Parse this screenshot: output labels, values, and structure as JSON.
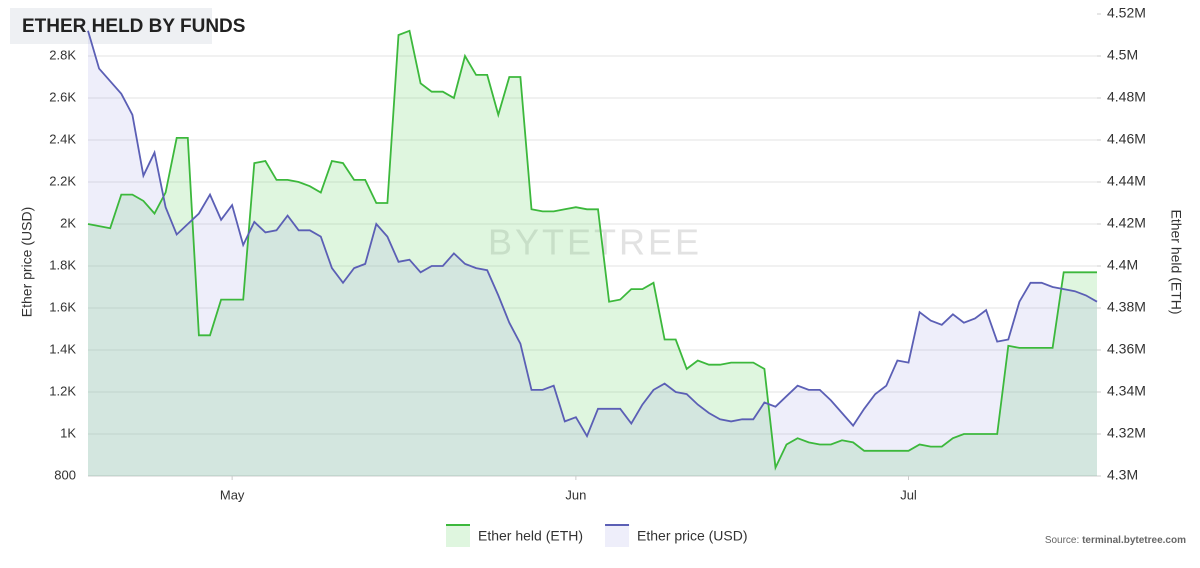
{
  "chart_data": {
    "type": "line",
    "title": "ETHER HELD BY FUNDS",
    "watermark": "BYTETREE",
    "source_prefix": "Source: ",
    "source": "terminal.bytetree.com",
    "y_label": "Ether price (USD)",
    "y2_label": "Ether held (ETH)",
    "grid": true,
    "x": [
      0,
      1,
      2,
      3,
      4,
      5,
      6,
      7,
      8,
      9,
      10,
      11,
      12,
      13,
      14,
      15,
      16,
      17,
      18,
      19,
      20,
      21,
      22,
      23,
      24,
      25,
      26,
      27,
      28,
      29,
      30,
      31,
      32,
      33,
      34,
      35,
      36,
      37,
      38,
      39,
      40,
      41,
      42,
      43,
      44,
      45,
      46,
      47,
      48,
      49,
      50,
      51,
      52,
      53,
      54,
      55,
      56,
      57,
      58,
      59,
      60,
      61,
      62,
      63,
      64,
      65,
      66,
      67,
      68,
      69,
      70,
      71,
      72,
      73,
      74,
      75,
      76,
      77,
      78,
      79,
      80,
      81,
      82,
      83,
      84,
      85,
      86,
      87,
      88,
      89,
      90,
      91
    ],
    "xlim": [
      0,
      91
    ],
    "xticks": [
      {
        "value": 13,
        "label": "May"
      },
      {
        "value": 44,
        "label": "Jun"
      },
      {
        "value": 74,
        "label": "Jul"
      }
    ],
    "ylim": [
      800,
      3000
    ],
    "yticks": [
      800,
      {
        "value": 1000,
        "label": "1K"
      },
      {
        "value": 1200,
        "label": "1.2K"
      },
      {
        "value": 1400,
        "label": "1.4K"
      },
      {
        "value": 1600,
        "label": "1.6K"
      },
      {
        "value": 1800,
        "label": "1.8K"
      },
      {
        "value": 2000,
        "label": "2K"
      },
      {
        "value": 2200,
        "label": "2.2K"
      },
      {
        "value": 2400,
        "label": "2.4K"
      },
      {
        "value": 2600,
        "label": "2.6K"
      },
      {
        "value": 2800,
        "label": "2.8K"
      }
    ],
    "y2lim": [
      4300000,
      4520000
    ],
    "y2ticks": [
      {
        "value": 4300000,
        "label": "4.3M"
      },
      {
        "value": 4320000,
        "label": "4.32M"
      },
      {
        "value": 4340000,
        "label": "4.34M"
      },
      {
        "value": 4360000,
        "label": "4.36M"
      },
      {
        "value": 4380000,
        "label": "4.38M"
      },
      {
        "value": 4400000,
        "label": "4.4M"
      },
      {
        "value": 4420000,
        "label": "4.42M"
      },
      {
        "value": 4440000,
        "label": "4.44M"
      },
      {
        "value": 4460000,
        "label": "4.46M"
      },
      {
        "value": 4480000,
        "label": "4.48M"
      },
      {
        "value": 4500000,
        "label": "4.5M"
      },
      {
        "value": 4520000,
        "label": "4.52M"
      }
    ],
    "series": [
      {
        "name": "Ether held (ETH)",
        "color": "#3cb83c",
        "fill": "rgba(110,215,110,0.22)",
        "axis": "y2",
        "values": [
          4420000,
          4419000,
          4418000,
          4434000,
          4434000,
          4431000,
          4425000,
          4435000,
          4461000,
          4461000,
          4367000,
          4367000,
          4384000,
          4384000,
          4384000,
          4449000,
          4450000,
          4441000,
          4441000,
          4440000,
          4438000,
          4435000,
          4450000,
          4449000,
          4441000,
          4441000,
          4430000,
          4430000,
          4510000,
          4512000,
          4487000,
          4483000,
          4483000,
          4480000,
          4500000,
          4491000,
          4491000,
          4472000,
          4490000,
          4490000,
          4427000,
          4426000,
          4426000,
          4427000,
          4428000,
          4427000,
          4427000,
          4383000,
          4384000,
          4389000,
          4389000,
          4392000,
          4365000,
          4365000,
          4351000,
          4355000,
          4353000,
          4353000,
          4354000,
          4354000,
          4354000,
          4351000,
          4304000,
          4315000,
          4318000,
          4316000,
          4315000,
          4315000,
          4317000,
          4316000,
          4312000,
          4312000,
          4312000,
          4312000,
          4312000,
          4315000,
          4314000,
          4314000,
          4318000,
          4320000,
          4320000,
          4320000,
          4320000,
          4362000,
          4361000,
          4361000,
          4361000,
          4361000,
          4397000,
          4397000,
          4397000,
          4397000
        ]
      },
      {
        "name": "Ether price (USD)",
        "color": "#5b5fb5",
        "fill": "rgba(150,150,225,0.16)",
        "values": [
          2920,
          2740,
          2680,
          2620,
          2520,
          2230,
          2340,
          2080,
          1950,
          2000,
          2050,
          2140,
          2020,
          2090,
          1900,
          2010,
          1960,
          1970,
          2040,
          1970,
          1970,
          1940,
          1790,
          1720,
          1790,
          1810,
          2000,
          1940,
          1820,
          1830,
          1770,
          1800,
          1800,
          1860,
          1810,
          1790,
          1780,
          1660,
          1530,
          1430,
          1210,
          1210,
          1230,
          1060,
          1080,
          990,
          1120,
          1120,
          1120,
          1050,
          1140,
          1210,
          1240,
          1200,
          1190,
          1140,
          1100,
          1070,
          1060,
          1070,
          1070,
          1150,
          1130,
          1180,
          1230,
          1210,
          1210,
          1160,
          1100,
          1040,
          1120,
          1190,
          1230,
          1350,
          1340,
          1580,
          1540,
          1520,
          1570,
          1530,
          1550,
          1590,
          1440,
          1450,
          1630,
          1720,
          1720,
          1700,
          1690,
          1680,
          1660,
          1630
        ]
      }
    ]
  }
}
